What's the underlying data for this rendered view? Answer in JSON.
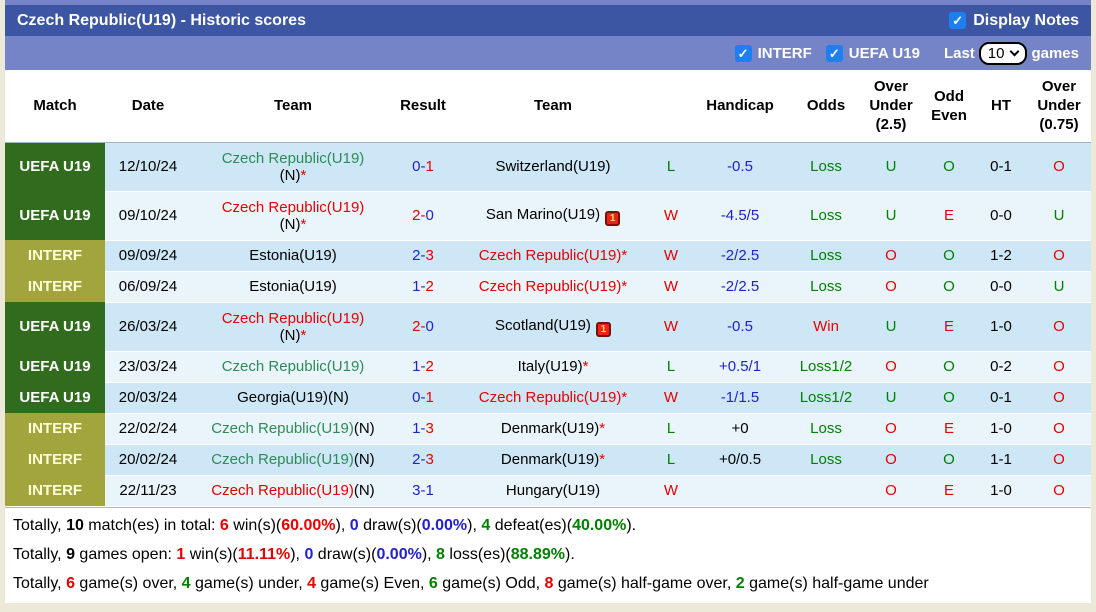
{
  "title_bar": {
    "title": "Czech Republic(U19) - Historic scores",
    "display_notes_label": "Display Notes",
    "display_notes_checked": true
  },
  "filter_bar": {
    "interf_label": "INTERF",
    "interf_checked": true,
    "uefa_label": "UEFA U19",
    "uefa_checked": true,
    "last_label": "Last",
    "last_games_value": "10",
    "games_label": "games"
  },
  "icons": {
    "checkbox_check_glyph": "✓",
    "red_card_glyph": "1"
  },
  "colors": {
    "black": "#000000",
    "red": "#e60000",
    "green": "#008000",
    "blue": "#2222cc",
    "team_green": "#2e8b57",
    "title_bar": "#3c56a4",
    "filter_bar": "#7484c6",
    "uefa_badge": "#306b1e",
    "interf_badge": "#a2a43e",
    "row_dark": "#cde7f6",
    "row_light": "#e9f4fb",
    "page_bg": "#ece9d8",
    "checkbox_blue": "#1f7ef0"
  },
  "table": {
    "headers": [
      "Match",
      "Date",
      "Team",
      "Result",
      "Team",
      "",
      "Handicap",
      "Odds",
      "Over Under (2.5)",
      "Odd Even",
      "HT",
      "Over Under (0.75)"
    ],
    "rows": [
      {
        "league": "UEFA U19",
        "lt": "uefa",
        "date": "12/10/24",
        "home": {
          "name": "Czech Republic(U19)",
          "c": "g",
          "n": true,
          "star": true,
          "wrap": true
        },
        "score": {
          "h": "0",
          "hc": "b",
          "a": "1",
          "ac": "r"
        },
        "away": {
          "name": "Switzerland(U19)",
          "c": "k"
        },
        "letter": {
          "t": "L",
          "c": "g"
        },
        "handicap": {
          "t": "-0.5",
          "c": "b"
        },
        "odds": {
          "t": "Loss",
          "c": "g"
        },
        "ou25": {
          "t": "U",
          "c": "g"
        },
        "oe": {
          "t": "O",
          "c": "g"
        },
        "ht": "0-1",
        "ou075": {
          "t": "O",
          "c": "r"
        }
      },
      {
        "league": "UEFA U19",
        "lt": "uefa",
        "date": "09/10/24",
        "home": {
          "name": "Czech Republic(U19)",
          "c": "r",
          "n": true,
          "star": true,
          "wrap": true
        },
        "score": {
          "h": "2",
          "hc": "r",
          "a": "0",
          "ac": "b"
        },
        "away": {
          "name": "San Marino(U19)",
          "c": "k",
          "icon": true
        },
        "letter": {
          "t": "W",
          "c": "r"
        },
        "handicap": {
          "t": "-4.5/5",
          "c": "b"
        },
        "odds": {
          "t": "Loss",
          "c": "g"
        },
        "ou25": {
          "t": "U",
          "c": "g"
        },
        "oe": {
          "t": "E",
          "c": "r"
        },
        "ht": "0-0",
        "ou075": {
          "t": "U",
          "c": "g"
        }
      },
      {
        "league": "INTERF",
        "lt": "interf",
        "date": "09/09/24",
        "home": {
          "name": "Estonia(U19)",
          "c": "k"
        },
        "score": {
          "h": "2",
          "hc": "b",
          "a": "3",
          "ac": "r"
        },
        "away": {
          "name": "Czech Republic(U19)",
          "c": "r",
          "star": true
        },
        "letter": {
          "t": "W",
          "c": "r"
        },
        "handicap": {
          "t": "-2/2.5",
          "c": "b"
        },
        "odds": {
          "t": "Loss",
          "c": "g"
        },
        "ou25": {
          "t": "O",
          "c": "r"
        },
        "oe": {
          "t": "O",
          "c": "g"
        },
        "ht": "1-2",
        "ou075": {
          "t": "O",
          "c": "r"
        }
      },
      {
        "league": "INTERF",
        "lt": "interf",
        "date": "06/09/24",
        "home": {
          "name": "Estonia(U19)",
          "c": "k"
        },
        "score": {
          "h": "1",
          "hc": "b",
          "a": "2",
          "ac": "r"
        },
        "away": {
          "name": "Czech Republic(U19)",
          "c": "r",
          "star": true
        },
        "letter": {
          "t": "W",
          "c": "r"
        },
        "handicap": {
          "t": "-2/2.5",
          "c": "b"
        },
        "odds": {
          "t": "Loss",
          "c": "g"
        },
        "ou25": {
          "t": "O",
          "c": "r"
        },
        "oe": {
          "t": "O",
          "c": "g"
        },
        "ht": "0-0",
        "ou075": {
          "t": "U",
          "c": "g"
        }
      },
      {
        "league": "UEFA U19",
        "lt": "uefa",
        "date": "26/03/24",
        "home": {
          "name": "Czech Republic(U19)",
          "c": "r",
          "n": true,
          "star": true,
          "wrap": true
        },
        "score": {
          "h": "2",
          "hc": "r",
          "a": "0",
          "ac": "b"
        },
        "away": {
          "name": "Scotland(U19)",
          "c": "k",
          "icon": true
        },
        "letter": {
          "t": "W",
          "c": "r"
        },
        "handicap": {
          "t": "-0.5",
          "c": "b"
        },
        "odds": {
          "t": "Win",
          "c": "r"
        },
        "ou25": {
          "t": "U",
          "c": "g"
        },
        "oe": {
          "t": "E",
          "c": "r"
        },
        "ht": "1-0",
        "ou075": {
          "t": "O",
          "c": "r"
        }
      },
      {
        "league": "UEFA U19",
        "lt": "uefa",
        "date": "23/03/24",
        "home": {
          "name": "Czech Republic(U19)",
          "c": "g"
        },
        "score": {
          "h": "1",
          "hc": "b",
          "a": "2",
          "ac": "r"
        },
        "away": {
          "name": "Italy(U19)",
          "c": "k",
          "star": true
        },
        "letter": {
          "t": "L",
          "c": "g"
        },
        "handicap": {
          "t": "+0.5/1",
          "c": "b"
        },
        "odds": {
          "t": "Loss1/2",
          "c": "g"
        },
        "ou25": {
          "t": "O",
          "c": "r"
        },
        "oe": {
          "t": "O",
          "c": "g"
        },
        "ht": "0-2",
        "ou075": {
          "t": "O",
          "c": "r"
        }
      },
      {
        "league": "UEFA U19",
        "lt": "uefa",
        "date": "20/03/24",
        "home": {
          "name": "Georgia(U19)(N)",
          "c": "k"
        },
        "score": {
          "h": "0",
          "hc": "b",
          "a": "1",
          "ac": "r"
        },
        "away": {
          "name": "Czech Republic(U19)",
          "c": "r",
          "star": true
        },
        "letter": {
          "t": "W",
          "c": "r"
        },
        "handicap": {
          "t": "-1/1.5",
          "c": "b"
        },
        "odds": {
          "t": "Loss1/2",
          "c": "g"
        },
        "ou25": {
          "t": "U",
          "c": "g"
        },
        "oe": {
          "t": "O",
          "c": "g"
        },
        "ht": "0-1",
        "ou075": {
          "t": "O",
          "c": "r"
        }
      },
      {
        "league": "INTERF",
        "lt": "interf",
        "date": "22/02/24",
        "home": {
          "name": "Czech Republic(U19)",
          "c": "g",
          "n": true
        },
        "score": {
          "h": "1",
          "hc": "b",
          "a": "3",
          "ac": "r"
        },
        "away": {
          "name": "Denmark(U19)",
          "c": "k",
          "star": true
        },
        "letter": {
          "t": "L",
          "c": "g"
        },
        "handicap": {
          "t": "+0",
          "c": "k"
        },
        "odds": {
          "t": "Loss",
          "c": "g"
        },
        "ou25": {
          "t": "O",
          "c": "r"
        },
        "oe": {
          "t": "E",
          "c": "r"
        },
        "ht": "1-0",
        "ou075": {
          "t": "O",
          "c": "r"
        }
      },
      {
        "league": "INTERF",
        "lt": "interf",
        "date": "20/02/24",
        "home": {
          "name": "Czech Republic(U19)",
          "c": "g",
          "n": true
        },
        "score": {
          "h": "2",
          "hc": "b",
          "a": "3",
          "ac": "r"
        },
        "away": {
          "name": "Denmark(U19)",
          "c": "k",
          "star": true
        },
        "letter": {
          "t": "L",
          "c": "g"
        },
        "handicap": {
          "t": "+0/0.5",
          "c": "k"
        },
        "odds": {
          "t": "Loss",
          "c": "g"
        },
        "ou25": {
          "t": "O",
          "c": "r"
        },
        "oe": {
          "t": "O",
          "c": "g"
        },
        "ht": "1-1",
        "ou075": {
          "t": "O",
          "c": "r"
        }
      },
      {
        "league": "INTERF",
        "lt": "interf",
        "date": "22/11/23",
        "home": {
          "name": "Czech Republic(U19)",
          "c": "r",
          "n": true
        },
        "score": {
          "h": "3",
          "hc": "b",
          "a": "1",
          "ac": "b"
        },
        "away": {
          "name": "Hungary(U19)",
          "c": "k"
        },
        "letter": {
          "t": "W",
          "c": "r"
        },
        "handicap": {
          "t": "",
          "c": "k"
        },
        "odds": {
          "t": "",
          "c": "k"
        },
        "ou25": {
          "t": "O",
          "c": "r"
        },
        "oe": {
          "t": "E",
          "c": "r"
        },
        "ht": "1-0",
        "ou075": {
          "t": "O",
          "c": "r"
        }
      }
    ]
  },
  "summary": {
    "lines": [
      [
        {
          "t": "Totally, ",
          "c": "k"
        },
        {
          "t": "10",
          "c": "k",
          "b": 1
        },
        {
          "t": " match(es) in total: ",
          "c": "k"
        },
        {
          "t": "6",
          "c": "r",
          "b": 1
        },
        {
          "t": " win(s)(",
          "c": "k"
        },
        {
          "t": "60.00%",
          "c": "r",
          "b": 1
        },
        {
          "t": "), ",
          "c": "k"
        },
        {
          "t": "0",
          "c": "b",
          "b": 1
        },
        {
          "t": " draw(s)(",
          "c": "k"
        },
        {
          "t": "0.00%",
          "c": "b",
          "b": 1
        },
        {
          "t": "), ",
          "c": "k"
        },
        {
          "t": "4",
          "c": "g",
          "b": 1
        },
        {
          "t": " defeat(es)(",
          "c": "k"
        },
        {
          "t": "40.00%",
          "c": "g",
          "b": 1
        },
        {
          "t": ").",
          "c": "k"
        }
      ],
      [
        {
          "t": "Totally, ",
          "c": "k"
        },
        {
          "t": "9",
          "c": "k",
          "b": 1
        },
        {
          "t": " games open: ",
          "c": "k"
        },
        {
          "t": "1",
          "c": "r",
          "b": 1
        },
        {
          "t": " win(s)(",
          "c": "k"
        },
        {
          "t": "11.11%",
          "c": "r",
          "b": 1
        },
        {
          "t": "), ",
          "c": "k"
        },
        {
          "t": "0",
          "c": "b",
          "b": 1
        },
        {
          "t": " draw(s)(",
          "c": "k"
        },
        {
          "t": "0.00%",
          "c": "b",
          "b": 1
        },
        {
          "t": "), ",
          "c": "k"
        },
        {
          "t": "8",
          "c": "g",
          "b": 1
        },
        {
          "t": " loss(es)(",
          "c": "k"
        },
        {
          "t": "88.89%",
          "c": "g",
          "b": 1
        },
        {
          "t": ").",
          "c": "k"
        }
      ],
      [
        {
          "t": "Totally, ",
          "c": "k"
        },
        {
          "t": "6",
          "c": "r",
          "b": 1
        },
        {
          "t": " game(s) over, ",
          "c": "k"
        },
        {
          "t": "4",
          "c": "g",
          "b": 1
        },
        {
          "t": " game(s) under, ",
          "c": "k"
        },
        {
          "t": "4",
          "c": "r",
          "b": 1
        },
        {
          "t": " game(s) Even, ",
          "c": "k"
        },
        {
          "t": "6",
          "c": "g",
          "b": 1
        },
        {
          "t": " game(s) Odd, ",
          "c": "k"
        },
        {
          "t": "8",
          "c": "r",
          "b": 1
        },
        {
          "t": " game(s) half-game over, ",
          "c": "k"
        },
        {
          "t": "2",
          "c": "g",
          "b": 1
        },
        {
          "t": " game(s) half-game under",
          "c": "k"
        }
      ]
    ]
  }
}
